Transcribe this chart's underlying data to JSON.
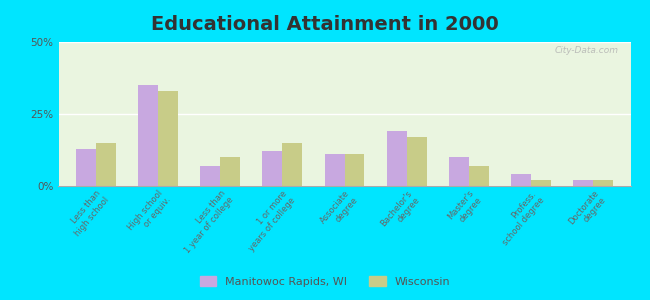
{
  "title": "Educational Attainment in 2000",
  "categories": [
    "Less than\nhigh school",
    "High school\nor equiv.",
    "Less than\n1 year of college",
    "1 or more\nyears of college",
    "Associate\ndegree",
    "Bachelor's\ndegree",
    "Master's\ndegree",
    "Profess.\nschool degree",
    "Doctorate\ndegree"
  ],
  "manitowoc_values": [
    13,
    35,
    7,
    12,
    11,
    19,
    10,
    4,
    2
  ],
  "wisconsin_values": [
    15,
    33,
    10,
    15,
    11,
    17,
    7,
    2,
    2
  ],
  "manitowoc_color": "#c8a8e0",
  "wisconsin_color": "#c8cc88",
  "background_color": "#eaf5e0",
  "outer_background": "#00e5ff",
  "yticks": [
    0,
    25,
    50
  ],
  "ylim": [
    0,
    50
  ],
  "legend_labels": [
    "Manitowoc Rapids, WI",
    "Wisconsin"
  ],
  "watermark": "City-Data.com",
  "title_fontsize": 14,
  "tick_label_fontsize": 6.0
}
